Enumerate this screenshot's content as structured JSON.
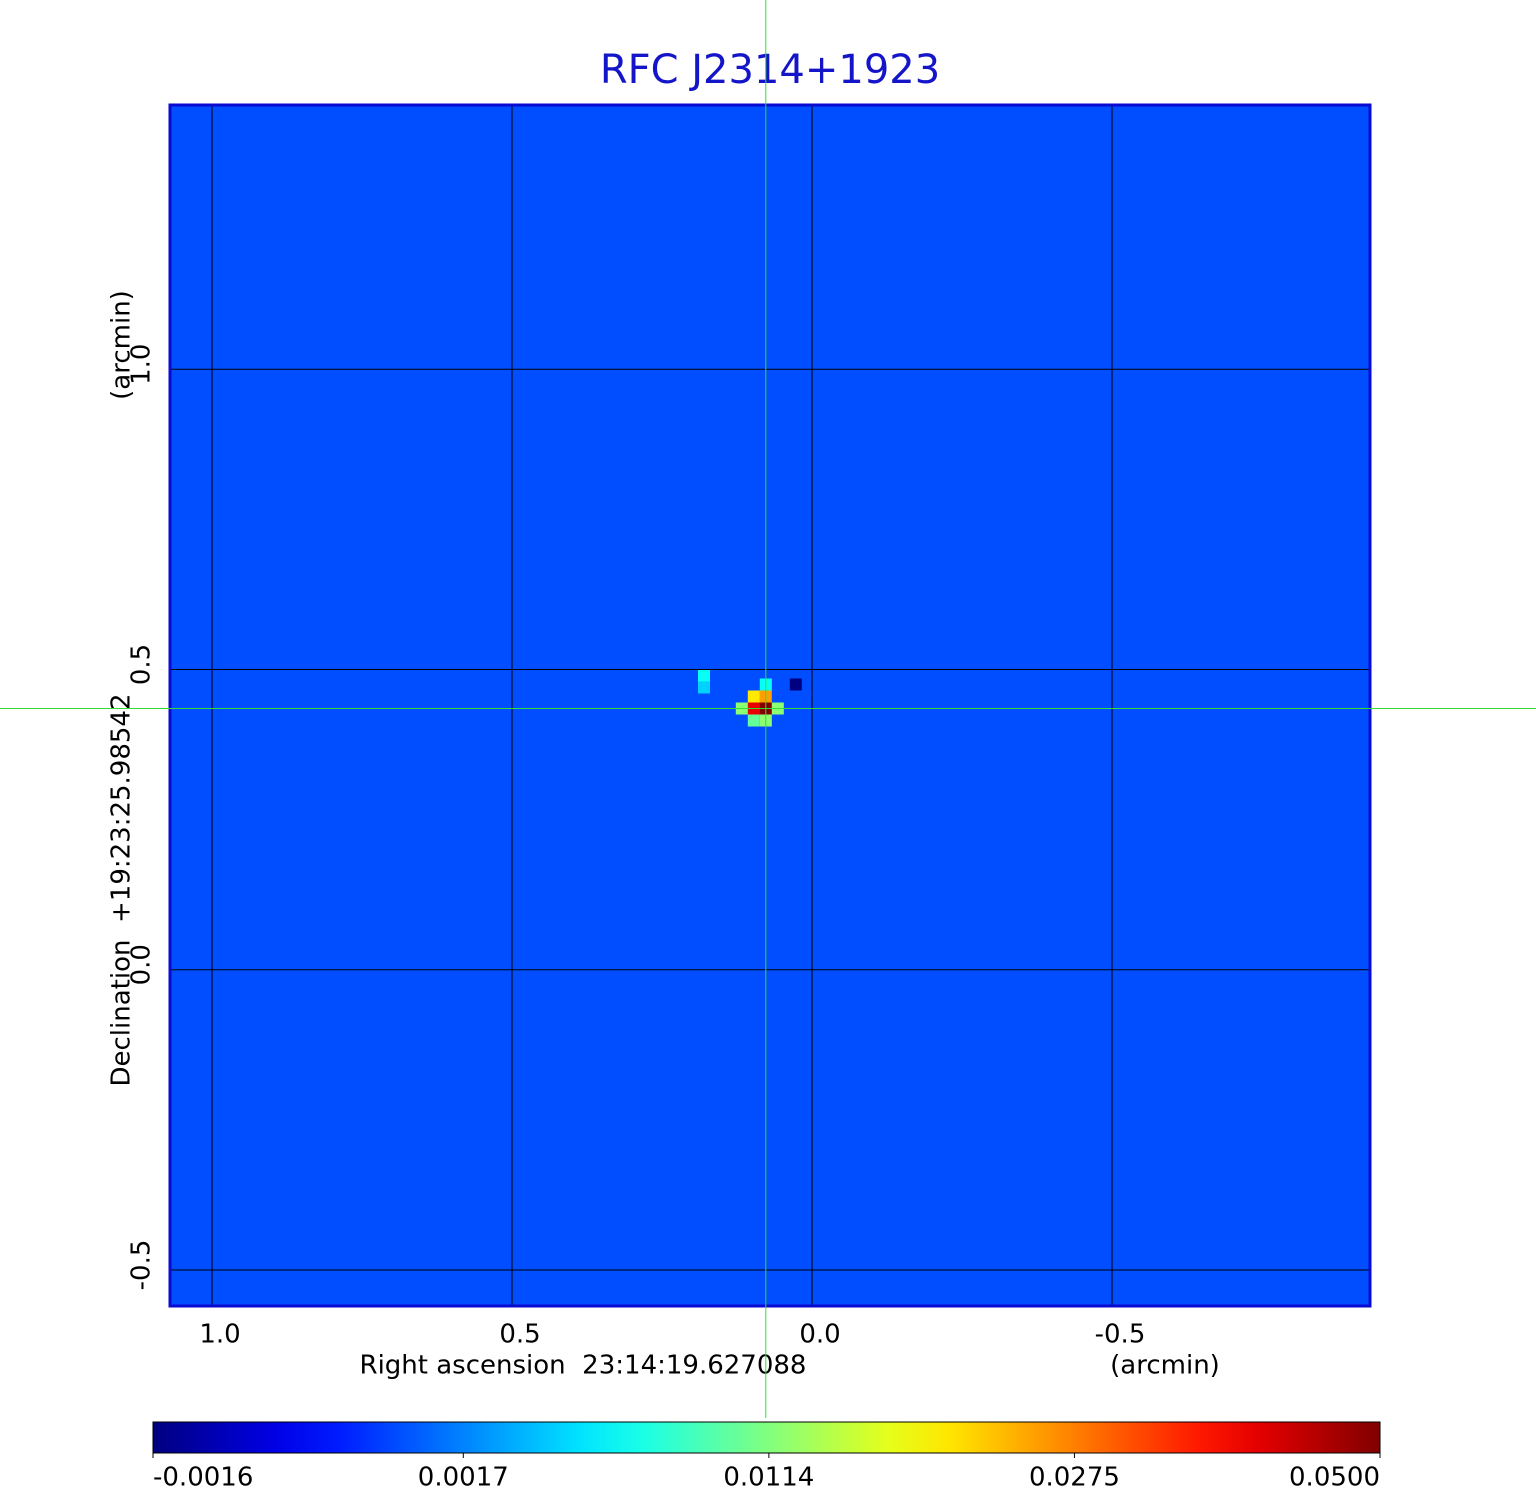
{
  "chart_data": {
    "type": "image",
    "title": "RFC J2314+1923",
    "xlabel": "Right ascension  23:14:19.627088",
    "xunit": "(arcmin)",
    "ylabel": "Declination  +19:23:25.98542",
    "yunit": "(arcmin)",
    "xlim": [
      1.07,
      -0.93
    ],
    "ylim": [
      -0.56,
      1.44
    ],
    "xticks": [
      {
        "value": 1,
        "label": "1.0"
      },
      0.5,
      {
        "value": 0,
        "label": "0.0"
      },
      -0.5
    ],
    "yticks": [
      -0.5,
      {
        "value": 0,
        "label": "0.0"
      },
      0.5,
      {
        "value": 1,
        "label": "1.0"
      }
    ],
    "grid": true,
    "colormap": "jet",
    "colorbar": {
      "scale": "sqrt",
      "clim": [
        -0.0016,
        0.05
      ],
      "ticks": [
        -0.0016,
        0.0017,
        0.0114,
        0.0275,
        {
          "value": 0.05,
          "label": "0.0500"
        }
      ]
    },
    "background_value": 0.0005,
    "pixels": [
      {
        "x": 0.077,
        "y": 0.435,
        "value": 0.05
      },
      {
        "x": 0.097,
        "y": 0.435,
        "value": 0.04
      },
      {
        "x": 0.077,
        "y": 0.455,
        "value": 0.025
      },
      {
        "x": 0.097,
        "y": 0.455,
        "value": 0.02
      },
      {
        "x": 0.057,
        "y": 0.435,
        "value": 0.012
      },
      {
        "x": 0.117,
        "y": 0.435,
        "value": 0.012
      },
      {
        "x": 0.077,
        "y": 0.415,
        "value": 0.012
      },
      {
        "x": 0.097,
        "y": 0.415,
        "value": 0.01
      },
      {
        "x": 0.077,
        "y": 0.475,
        "value": 0.006
      },
      {
        "x": 0.027,
        "y": 0.475,
        "value": -0.0016
      },
      {
        "x": 0.18,
        "y": 0.49,
        "value": 0.006
      },
      {
        "x": 0.18,
        "y": 0.47,
        "value": 0.004
      }
    ],
    "crosshair": {
      "x": 0.077,
      "y": 0.435,
      "color": "#33dd33"
    }
  }
}
